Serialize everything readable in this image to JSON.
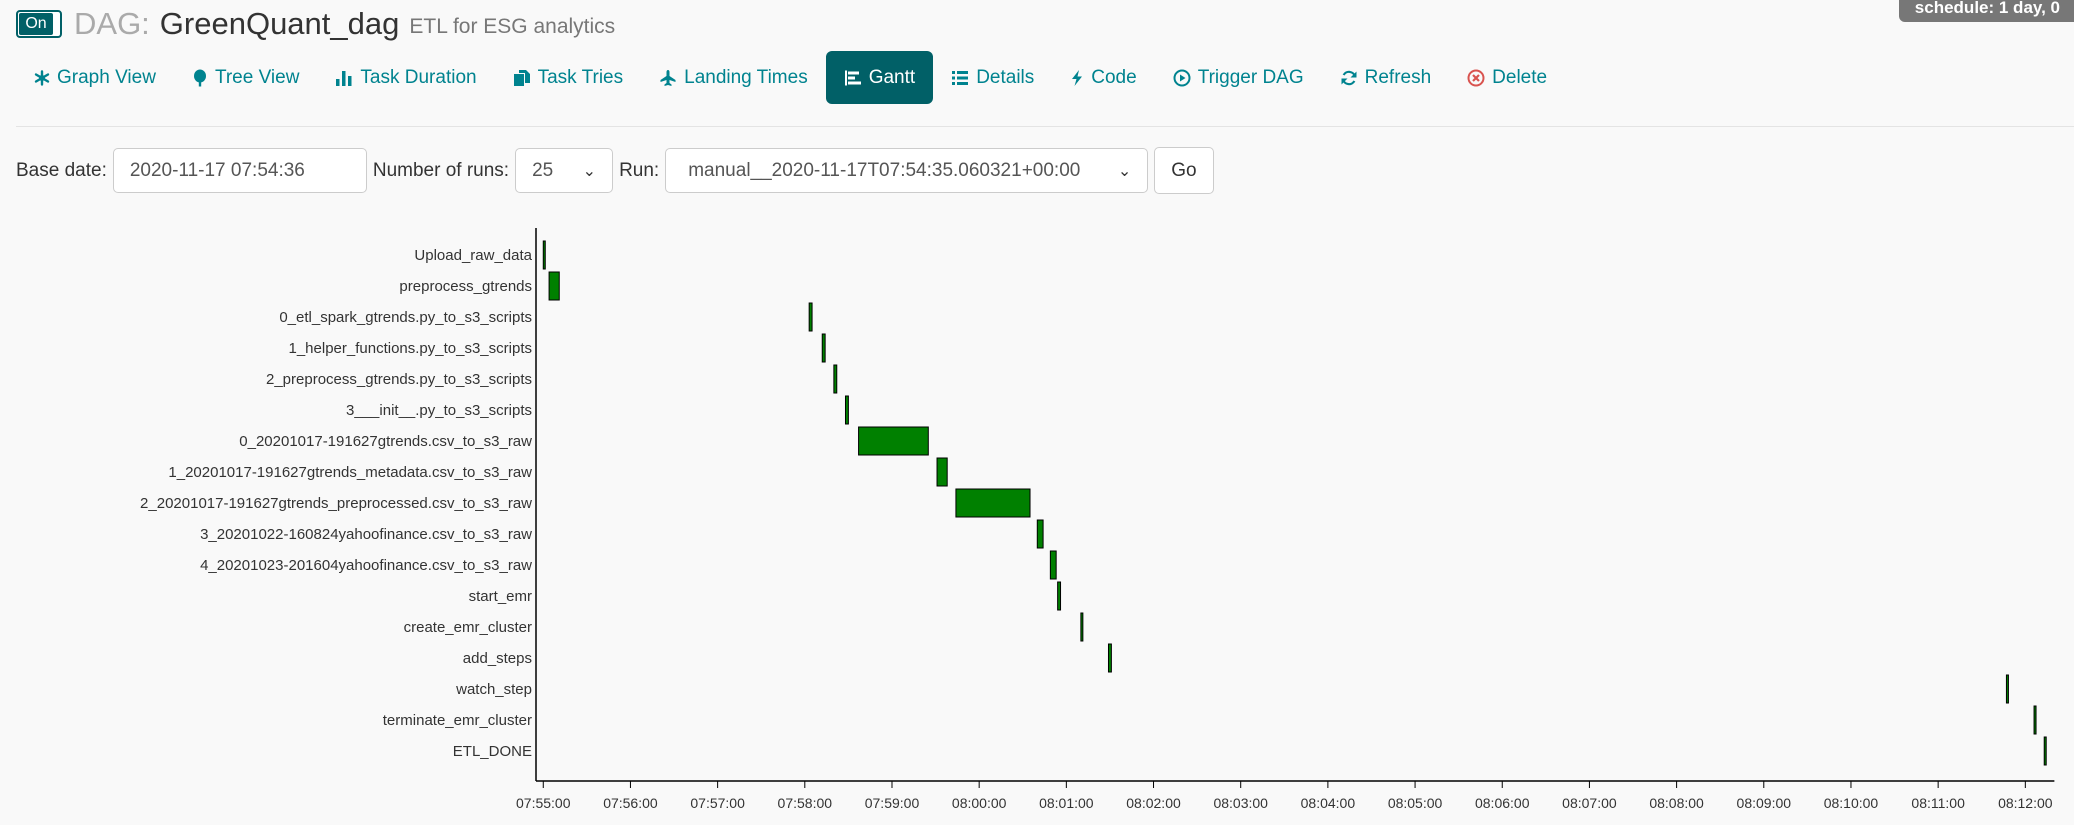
{
  "header": {
    "toggle_label": "On",
    "dag_prefix": "DAG:",
    "dag_name": "GreenQuant_dag",
    "dag_description": "ETL for ESG analytics",
    "schedule_badge": "schedule: 1 day, 0"
  },
  "nav": {
    "tabs": [
      {
        "label": "Graph View",
        "icon": "asterisk-icon",
        "active": false
      },
      {
        "label": "Tree View",
        "icon": "tree-icon",
        "active": false
      },
      {
        "label": "Task Duration",
        "icon": "bar-chart-icon",
        "active": false
      },
      {
        "label": "Task Tries",
        "icon": "duplicate-icon",
        "active": false
      },
      {
        "label": "Landing Times",
        "icon": "plane-icon",
        "active": false
      },
      {
        "label": "Gantt",
        "icon": "gantt-icon",
        "active": true
      },
      {
        "label": "Details",
        "icon": "list-icon",
        "active": false
      },
      {
        "label": "Code",
        "icon": "flash-icon",
        "active": false
      },
      {
        "label": "Trigger DAG",
        "icon": "play-circle-icon",
        "active": false
      },
      {
        "label": "Refresh",
        "icon": "refresh-icon",
        "active": false
      },
      {
        "label": "Delete",
        "icon": "remove-circle-icon",
        "active": false
      }
    ]
  },
  "form": {
    "base_date_label": "Base date:",
    "base_date_value": "2020-11-17 07:54:36",
    "num_runs_label": "Number of runs:",
    "num_runs_value": "25",
    "run_label": "Run:",
    "run_value": "manual__2020-11-17T07:54:35.060321+00:00",
    "go_label": "Go"
  },
  "colors": {
    "accent": "#016067",
    "link": "#00838f",
    "success": "#008000",
    "delete": "#d9534f"
  },
  "chart_data": {
    "type": "gantt",
    "time_axis": {
      "min": "07:54:55",
      "max": "08:12:20",
      "ticks": [
        "07:55:00",
        "07:56:00",
        "07:57:00",
        "07:58:00",
        "07:59:00",
        "08:00:00",
        "08:01:00",
        "08:02:00",
        "08:03:00",
        "08:04:00",
        "08:05:00",
        "08:06:00",
        "08:07:00",
        "08:08:00",
        "08:09:00",
        "08:10:00",
        "08:11:00",
        "08:12:00"
      ]
    },
    "tasks": [
      {
        "name": "Upload_raw_data",
        "start": "07:55:00",
        "end": "07:55:01",
        "state": "success"
      },
      {
        "name": "preprocess_gtrends",
        "start": "07:55:04",
        "end": "07:55:11",
        "state": "success"
      },
      {
        "name": "0_etl_spark_gtrends.py_to_s3_scripts",
        "start": "07:58:03",
        "end": "07:58:05",
        "state": "success"
      },
      {
        "name": "1_helper_functions.py_to_s3_scripts",
        "start": "07:58:12",
        "end": "07:58:14",
        "state": "success"
      },
      {
        "name": "2_preprocess_gtrends.py_to_s3_scripts",
        "start": "07:58:20",
        "end": "07:58:22",
        "state": "success"
      },
      {
        "name": "3___init__.py_to_s3_scripts",
        "start": "07:58:28",
        "end": "07:58:30",
        "state": "success"
      },
      {
        "name": "0_20201017-191627gtrends.csv_to_s3_raw",
        "start": "07:58:37",
        "end": "07:59:25",
        "state": "success"
      },
      {
        "name": "1_20201017-191627gtrends_metadata.csv_to_s3_raw",
        "start": "07:59:31",
        "end": "07:59:38",
        "state": "success"
      },
      {
        "name": "2_20201017-191627gtrends_preprocessed.csv_to_s3_raw",
        "start": "07:59:44",
        "end": "08:00:35",
        "state": "success"
      },
      {
        "name": "3_20201022-160824yahoofinance.csv_to_s3_raw",
        "start": "08:00:40",
        "end": "08:00:44",
        "state": "success"
      },
      {
        "name": "4_20201023-201604yahoofinance.csv_to_s3_raw",
        "start": "08:00:49",
        "end": "08:00:53",
        "state": "success"
      },
      {
        "name": "start_emr",
        "start": "08:00:54",
        "end": "08:00:56",
        "state": "success"
      },
      {
        "name": "create_emr_cluster",
        "start": "08:01:10",
        "end": "08:01:11",
        "state": "success"
      },
      {
        "name": "add_steps",
        "start": "08:01:29",
        "end": "08:01:31",
        "state": "success"
      },
      {
        "name": "watch_step",
        "start": "08:11:47",
        "end": "08:11:48",
        "state": "success"
      },
      {
        "name": "terminate_emr_cluster",
        "start": "08:12:06",
        "end": "08:12:07",
        "state": "success"
      },
      {
        "name": "ETL_DONE",
        "start": "08:12:13",
        "end": "08:12:14",
        "state": "success"
      }
    ]
  }
}
